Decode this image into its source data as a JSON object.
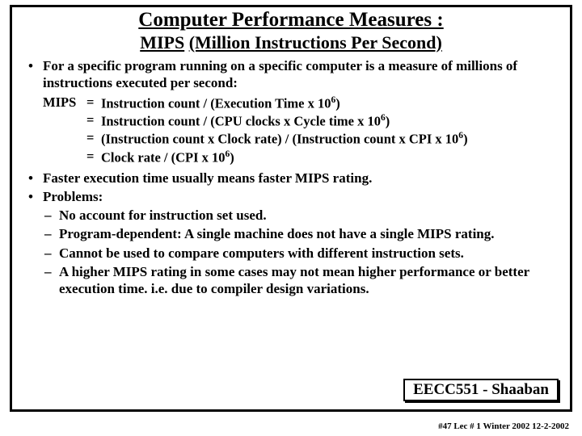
{
  "colors": {
    "border": "#000000",
    "background": "#ffffff",
    "text": "#000000"
  },
  "fonts": {
    "family": "Times New Roman",
    "title_size_pt": 25,
    "subtitle_size_pt": 22,
    "body_size_pt": 17
  },
  "title": {
    "main": "Computer Performance Measures :",
    "sub_label": "MIPS",
    "sub_paren": "(Million Instructions Per Second)"
  },
  "bullet1": "For a specific program running on a specific computer is a measure of millions of instructions executed per second:",
  "formula": {
    "label": "MIPS",
    "r1": "Instruction count  /  (Execution Time x 10",
    "r1_sup": "6",
    "r1_end": ")",
    "r2": "Instruction count  /  (CPU clocks x Cycle time x 10",
    "r2_sup": "6",
    "r2_end": ")",
    "r3": "(Instruction count  x  Clock rate)  /  (Instruction count  x  CPI x 10",
    "r3_sup": "6",
    "r3_end": ")",
    "r4": " Clock rate  /  (CPI x 10",
    "r4_sup": "6",
    "r4_end": ")"
  },
  "bullet2": "Faster execution time usually means faster MIPS rating.",
  "bullet3": "Problems:",
  "problems": {
    "p1": "No account for instruction set used.",
    "p2": "Program-dependent: A single machine does not have a single MIPS rating.",
    "p3": "Cannot be used to compare computers with different instruction sets.",
    "p4": "A higher MIPS rating in some cases may not mean higher performance or better execution time.  i.e. due to compiler design variations."
  },
  "course_box": "EECC551 - Shaaban",
  "footer": "#47   Lec # 1 Winter 2002   12-2-2002"
}
